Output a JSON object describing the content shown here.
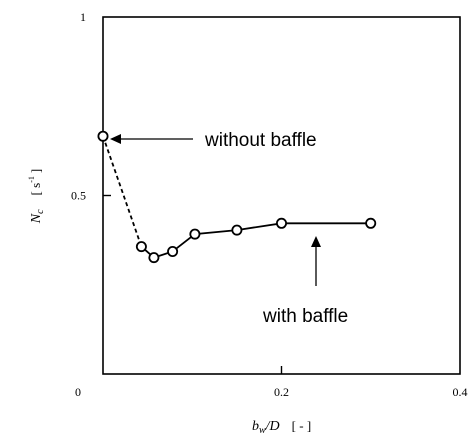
{
  "chart_data": {
    "type": "line",
    "title": "",
    "xlabel": {
      "var": "b",
      "sub": "w",
      "rest": "/D",
      "unit": "[ - ]"
    },
    "ylabel": {
      "var": "N",
      "sub": "c",
      "unit_open": "[ s",
      "unit_sup": "-1",
      "unit_close": "]"
    },
    "xlim": [
      0,
      0.4
    ],
    "ylim": [
      0,
      1
    ],
    "x_ticks": [
      {
        "value": 0,
        "label": "0"
      },
      {
        "value": 0.2,
        "label": "0.2"
      },
      {
        "value": 0.4,
        "label": "0.4"
      }
    ],
    "y_ticks": [
      {
        "value": 0.5,
        "label": "0.5"
      },
      {
        "value": 1,
        "label": "1"
      }
    ],
    "grid": false,
    "series": [
      {
        "name": "without baffle",
        "style": "dashed",
        "marker": "open-circle",
        "points": [
          [
            0.0,
            0.666
          ],
          [
            0.043,
            0.357
          ]
        ]
      },
      {
        "name": "with baffle",
        "style": "solid",
        "marker": "open-circle",
        "points": [
          [
            0.043,
            0.357
          ],
          [
            0.057,
            0.326
          ],
          [
            0.078,
            0.343
          ],
          [
            0.103,
            0.392
          ],
          [
            0.15,
            0.403
          ],
          [
            0.2,
            0.422
          ],
          [
            0.3,
            0.422
          ]
        ]
      }
    ],
    "annotations": [
      {
        "text": "without baffle",
        "arrow": "left",
        "target": [
          0.0,
          0.666
        ]
      },
      {
        "text": "with baffle",
        "arrow": "up",
        "target": [
          0.23,
          0.408
        ]
      }
    ]
  }
}
